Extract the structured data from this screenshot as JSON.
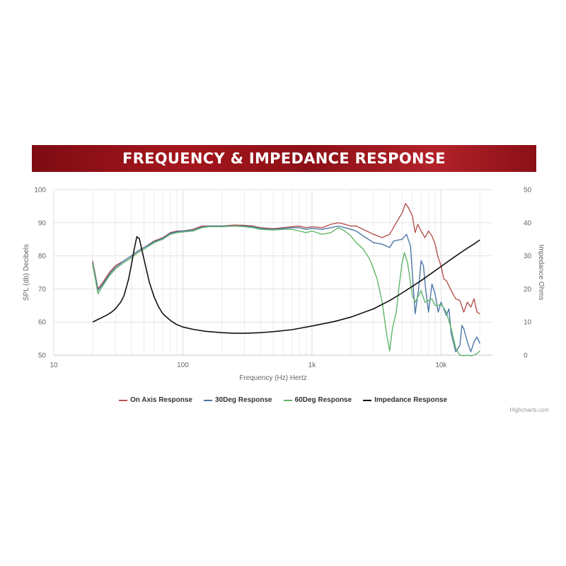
{
  "banner": {
    "title": "FREQUENCY & IMPEDANCE RESPONSE"
  },
  "credits": "Highcharts.com",
  "chart_data": {
    "type": "line",
    "title": "FREQUENCY & IMPEDANCE RESPONSE",
    "xlabel": "Frequency (Hz) Hertz",
    "ylabel": "SPL (db) Decibels",
    "y2label": "Impedance Ohms",
    "x_scale": "log",
    "xlim": [
      10,
      25000
    ],
    "ylim": [
      50,
      100
    ],
    "y2lim": [
      0,
      50
    ],
    "x_ticks": [
      {
        "value": 10,
        "label": "10"
      },
      {
        "value": 100,
        "label": "100"
      },
      {
        "value": 1000,
        "label": "1k"
      },
      {
        "value": 10000,
        "label": "10k"
      }
    ],
    "y_ticks": [
      "50",
      "60",
      "70",
      "80",
      "90",
      "100"
    ],
    "y2_ticks": [
      "0",
      "10",
      "20",
      "30",
      "40",
      "50"
    ],
    "grid": true,
    "legend_position": "bottom-center",
    "series": [
      {
        "name": "On Axis Response",
        "color": "#b5524d",
        "axis": "left",
        "points": [
          [
            20,
            78.5
          ],
          [
            22,
            70
          ],
          [
            24,
            72
          ],
          [
            27,
            75
          ],
          [
            30,
            77
          ],
          [
            35,
            78.5
          ],
          [
            40,
            80
          ],
          [
            45,
            81.5
          ],
          [
            50,
            82.5
          ],
          [
            60,
            84.5
          ],
          [
            70,
            85.5
          ],
          [
            80,
            87
          ],
          [
            90,
            87.5
          ],
          [
            100,
            87.5
          ],
          [
            120,
            88
          ],
          [
            140,
            89
          ],
          [
            160,
            89
          ],
          [
            200,
            89
          ],
          [
            250,
            89.3
          ],
          [
            300,
            89.2
          ],
          [
            350,
            89
          ],
          [
            400,
            88.5
          ],
          [
            500,
            88.2
          ],
          [
            600,
            88.5
          ],
          [
            700,
            88.8
          ],
          [
            800,
            89
          ],
          [
            900,
            88.5
          ],
          [
            1000,
            88.8
          ],
          [
            1200,
            88.5
          ],
          [
            1400,
            89.5
          ],
          [
            1600,
            90
          ],
          [
            1800,
            89.5
          ],
          [
            2000,
            89
          ],
          [
            2200,
            89
          ],
          [
            2500,
            88
          ],
          [
            3000,
            86.5
          ],
          [
            3500,
            85.5
          ],
          [
            4000,
            86.5
          ],
          [
            4500,
            90
          ],
          [
            5000,
            93
          ],
          [
            5300,
            95.8
          ],
          [
            5600,
            94.5
          ],
          [
            6000,
            92
          ],
          [
            6300,
            87
          ],
          [
            6600,
            89.5
          ],
          [
            7000,
            87.5
          ],
          [
            7500,
            85.5
          ],
          [
            8000,
            87.5
          ],
          [
            8500,
            86
          ],
          [
            9000,
            83.5
          ],
          [
            9500,
            79.5
          ],
          [
            10000,
            77
          ],
          [
            10500,
            73
          ],
          [
            11000,
            72.5
          ],
          [
            12000,
            69.5
          ],
          [
            13000,
            67
          ],
          [
            14000,
            66.5
          ],
          [
            15000,
            63
          ],
          [
            16000,
            66
          ],
          [
            17000,
            64.5
          ],
          [
            18000,
            67
          ],
          [
            19000,
            63
          ],
          [
            20000,
            62.5
          ]
        ]
      },
      {
        "name": "30Deg Response",
        "color": "#4d76a6",
        "axis": "left",
        "points": [
          [
            20,
            78
          ],
          [
            22,
            69.5
          ],
          [
            24,
            71.5
          ],
          [
            27,
            74.5
          ],
          [
            30,
            76.5
          ],
          [
            35,
            78.5
          ],
          [
            40,
            80
          ],
          [
            45,
            81.5
          ],
          [
            50,
            82.5
          ],
          [
            60,
            84.3
          ],
          [
            70,
            85.3
          ],
          [
            80,
            86.8
          ],
          [
            90,
            87.3
          ],
          [
            100,
            87.5
          ],
          [
            120,
            87.8
          ],
          [
            140,
            88.7
          ],
          [
            160,
            89
          ],
          [
            200,
            89
          ],
          [
            250,
            89
          ],
          [
            300,
            89
          ],
          [
            350,
            88.8
          ],
          [
            400,
            88.3
          ],
          [
            500,
            88
          ],
          [
            600,
            88.3
          ],
          [
            700,
            88.5
          ],
          [
            800,
            88.5
          ],
          [
            900,
            88
          ],
          [
            1000,
            88.3
          ],
          [
            1200,
            88
          ],
          [
            1400,
            88.5
          ],
          [
            1600,
            89
          ],
          [
            1800,
            88.5
          ],
          [
            2000,
            88
          ],
          [
            2200,
            87.5
          ],
          [
            2500,
            86
          ],
          [
            3000,
            84
          ],
          [
            3500,
            83.5
          ],
          [
            4000,
            82.5
          ],
          [
            4300,
            84.5
          ],
          [
            5000,
            85
          ],
          [
            5400,
            86.5
          ],
          [
            5800,
            83
          ],
          [
            6000,
            74.5
          ],
          [
            6300,
            62.5
          ],
          [
            6700,
            70
          ],
          [
            7000,
            78.5
          ],
          [
            7300,
            77
          ],
          [
            7600,
            70
          ],
          [
            8000,
            63
          ],
          [
            8500,
            71.5
          ],
          [
            9000,
            68.5
          ],
          [
            9500,
            63
          ],
          [
            10000,
            66
          ],
          [
            11000,
            62
          ],
          [
            11500,
            64
          ],
          [
            12000,
            56.5
          ],
          [
            13000,
            51
          ],
          [
            14000,
            53
          ],
          [
            14500,
            59
          ],
          [
            15000,
            58
          ],
          [
            16000,
            54
          ],
          [
            17000,
            51
          ],
          [
            18000,
            54
          ],
          [
            19000,
            55.5
          ],
          [
            20000,
            53.5
          ]
        ]
      },
      {
        "name": "60Deg Response",
        "color": "#5fb56a",
        "axis": "left",
        "points": [
          [
            20,
            77.5
          ],
          [
            22,
            68.5
          ],
          [
            24,
            71
          ],
          [
            27,
            74
          ],
          [
            30,
            76
          ],
          [
            35,
            78
          ],
          [
            40,
            79.5
          ],
          [
            45,
            81
          ],
          [
            50,
            82
          ],
          [
            60,
            84
          ],
          [
            70,
            85
          ],
          [
            80,
            86.5
          ],
          [
            90,
            87
          ],
          [
            100,
            87.2
          ],
          [
            120,
            87.5
          ],
          [
            140,
            88.5
          ],
          [
            160,
            88.8
          ],
          [
            200,
            88.8
          ],
          [
            250,
            89
          ],
          [
            300,
            88.8
          ],
          [
            350,
            88.5
          ],
          [
            400,
            88
          ],
          [
            500,
            87.8
          ],
          [
            600,
            88
          ],
          [
            700,
            88
          ],
          [
            800,
            87.5
          ],
          [
            900,
            87
          ],
          [
            1000,
            87.5
          ],
          [
            1200,
            86.5
          ],
          [
            1400,
            87
          ],
          [
            1600,
            88.5
          ],
          [
            1800,
            87.5
          ],
          [
            2000,
            86
          ],
          [
            2200,
            84
          ],
          [
            2500,
            82
          ],
          [
            2800,
            79
          ],
          [
            3000,
            76
          ],
          [
            3200,
            73
          ],
          [
            3500,
            66
          ],
          [
            3800,
            56
          ],
          [
            4000,
            51.3
          ],
          [
            4200,
            58
          ],
          [
            4500,
            63
          ],
          [
            4700,
            70
          ],
          [
            5000,
            78
          ],
          [
            5200,
            81
          ],
          [
            5500,
            78
          ],
          [
            5800,
            72
          ],
          [
            6000,
            68
          ],
          [
            6300,
            66
          ],
          [
            6700,
            68
          ],
          [
            7000,
            69.5
          ],
          [
            7500,
            66
          ],
          [
            8000,
            66.5
          ],
          [
            8500,
            67
          ],
          [
            9000,
            65
          ],
          [
            9500,
            65
          ],
          [
            10000,
            65.5
          ],
          [
            11000,
            63
          ],
          [
            12000,
            58
          ],
          [
            13000,
            52
          ],
          [
            14000,
            50
          ],
          [
            15000,
            49.8
          ],
          [
            16000,
            50
          ],
          [
            17000,
            49.8
          ],
          [
            18000,
            50
          ],
          [
            19000,
            50.5
          ],
          [
            20000,
            51.3
          ]
        ]
      },
      {
        "name": "Impedance Response",
        "color": "#111111",
        "axis": "right",
        "points": [
          [
            20,
            10
          ],
          [
            22,
            10.8
          ],
          [
            24,
            11.5
          ],
          [
            26,
            12.2
          ],
          [
            28,
            13
          ],
          [
            30,
            14
          ],
          [
            33,
            16
          ],
          [
            35,
            18
          ],
          [
            38,
            23
          ],
          [
            40,
            27.5
          ],
          [
            42,
            32
          ],
          [
            44,
            35.8
          ],
          [
            46,
            35.2
          ],
          [
            48,
            32
          ],
          [
            50,
            29
          ],
          [
            55,
            22
          ],
          [
            60,
            17.5
          ],
          [
            65,
            14.5
          ],
          [
            70,
            12.5
          ],
          [
            80,
            10.5
          ],
          [
            90,
            9.2
          ],
          [
            100,
            8.5
          ],
          [
            120,
            7.8
          ],
          [
            150,
            7.2
          ],
          [
            200,
            6.8
          ],
          [
            250,
            6.6
          ],
          [
            300,
            6.6
          ],
          [
            400,
            6.8
          ],
          [
            500,
            7.1
          ],
          [
            700,
            7.7
          ],
          [
            1000,
            8.8
          ],
          [
            1500,
            10.2
          ],
          [
            2000,
            11.5
          ],
          [
            3000,
            14
          ],
          [
            4000,
            16.5
          ],
          [
            5000,
            18.8
          ],
          [
            6000,
            20.8
          ],
          [
            7000,
            22.5
          ],
          [
            8000,
            24.1
          ],
          [
            10000,
            26.8
          ],
          [
            12000,
            29
          ],
          [
            15000,
            31.6
          ],
          [
            18000,
            33.6
          ],
          [
            20000,
            34.8
          ]
        ]
      }
    ]
  }
}
